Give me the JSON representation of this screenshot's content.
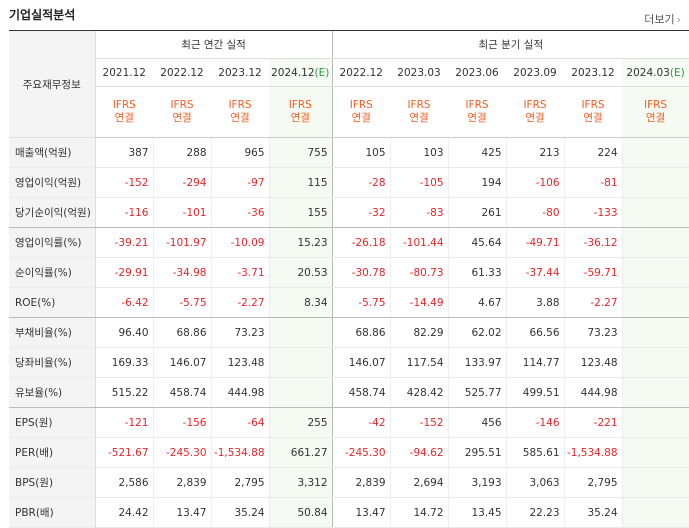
{
  "section_title": "기업실적분석",
  "more_label": "더보기",
  "row_header_label": "주요재무정보",
  "annual_header": "최근 연간 실적",
  "quarter_header": "최근 분기 실적",
  "periods": [
    {
      "label": "2021.12",
      "estimate": false
    },
    {
      "label": "2022.12",
      "estimate": false
    },
    {
      "label": "2023.12",
      "estimate": false
    },
    {
      "label": "2024.12",
      "estimate": true
    },
    {
      "label": "2022.12",
      "estimate": false
    },
    {
      "label": "2023.03",
      "estimate": false
    },
    {
      "label": "2023.06",
      "estimate": false
    },
    {
      "label": "2023.09",
      "estimate": false
    },
    {
      "label": "2023.12",
      "estimate": false
    },
    {
      "label": "2024.03",
      "estimate": true
    }
  ],
  "estimate_suffix": "(E)",
  "basis_line1": "IFRS",
  "basis_line2": "연결",
  "rows": [
    {
      "label": "매출액(억원)",
      "values": [
        "387",
        "288",
        "965",
        "755",
        "105",
        "103",
        "425",
        "213",
        "224",
        ""
      ]
    },
    {
      "label": "영업이익(억원)",
      "values": [
        "-152",
        "-294",
        "-97",
        "115",
        "-28",
        "-105",
        "194",
        "-106",
        "-81",
        ""
      ]
    },
    {
      "label": "당기순이익(억원)",
      "values": [
        "-116",
        "-101",
        "-36",
        "155",
        "-32",
        "-83",
        "261",
        "-80",
        "-133",
        ""
      ]
    },
    {
      "label": "영업이익률(%)",
      "values": [
        "-39.21",
        "-101.97",
        "-10.09",
        "15.23",
        "-26.18",
        "-101.44",
        "45.64",
        "-49.71",
        "-36.12",
        ""
      ]
    },
    {
      "label": "순이익률(%)",
      "values": [
        "-29.91",
        "-34.98",
        "-3.71",
        "20.53",
        "-30.78",
        "-80.73",
        "61.33",
        "-37.44",
        "-59.71",
        ""
      ]
    },
    {
      "label": "ROE(%)",
      "values": [
        "-6.42",
        "-5.75",
        "-2.27",
        "8.34",
        "-5.75",
        "-14.49",
        "4.67",
        "3.88",
        "-2.27",
        ""
      ]
    },
    {
      "label": "부채비율(%)",
      "values": [
        "96.40",
        "68.86",
        "73.23",
        "",
        "68.86",
        "82.29",
        "62.02",
        "66.56",
        "73.23",
        ""
      ]
    },
    {
      "label": "당좌비율(%)",
      "values": [
        "169.33",
        "146.07",
        "123.48",
        "",
        "146.07",
        "117.54",
        "133.97",
        "114.77",
        "123.48",
        ""
      ]
    },
    {
      "label": "유보율(%)",
      "values": [
        "515.22",
        "458.74",
        "444.98",
        "",
        "458.74",
        "428.42",
        "525.77",
        "499.51",
        "444.98",
        ""
      ]
    },
    {
      "label": "EPS(원)",
      "values": [
        "-121",
        "-156",
        "-64",
        "255",
        "-42",
        "-152",
        "456",
        "-146",
        "-221",
        ""
      ]
    },
    {
      "label": "PER(배)",
      "values": [
        "-521.67",
        "-245.30",
        "-1,534.88",
        "661.27",
        "-245.30",
        "-94.62",
        "295.51",
        "585.61",
        "-1,534.88",
        ""
      ]
    },
    {
      "label": "BPS(원)",
      "values": [
        "2,586",
        "2,839",
        "2,795",
        "3,312",
        "2,839",
        "2,694",
        "3,193",
        "3,063",
        "2,795",
        ""
      ]
    },
    {
      "label": "PBR(배)",
      "values": [
        "24.42",
        "13.47",
        "35.24",
        "50.84",
        "13.47",
        "14.72",
        "13.45",
        "22.23",
        "35.24",
        ""
      ]
    }
  ],
  "colors": {
    "negative": "#e2272b",
    "basis": "#f15d22",
    "estimate_bg": "#f5faf3",
    "estimate_suffix": "#2d9a41"
  }
}
